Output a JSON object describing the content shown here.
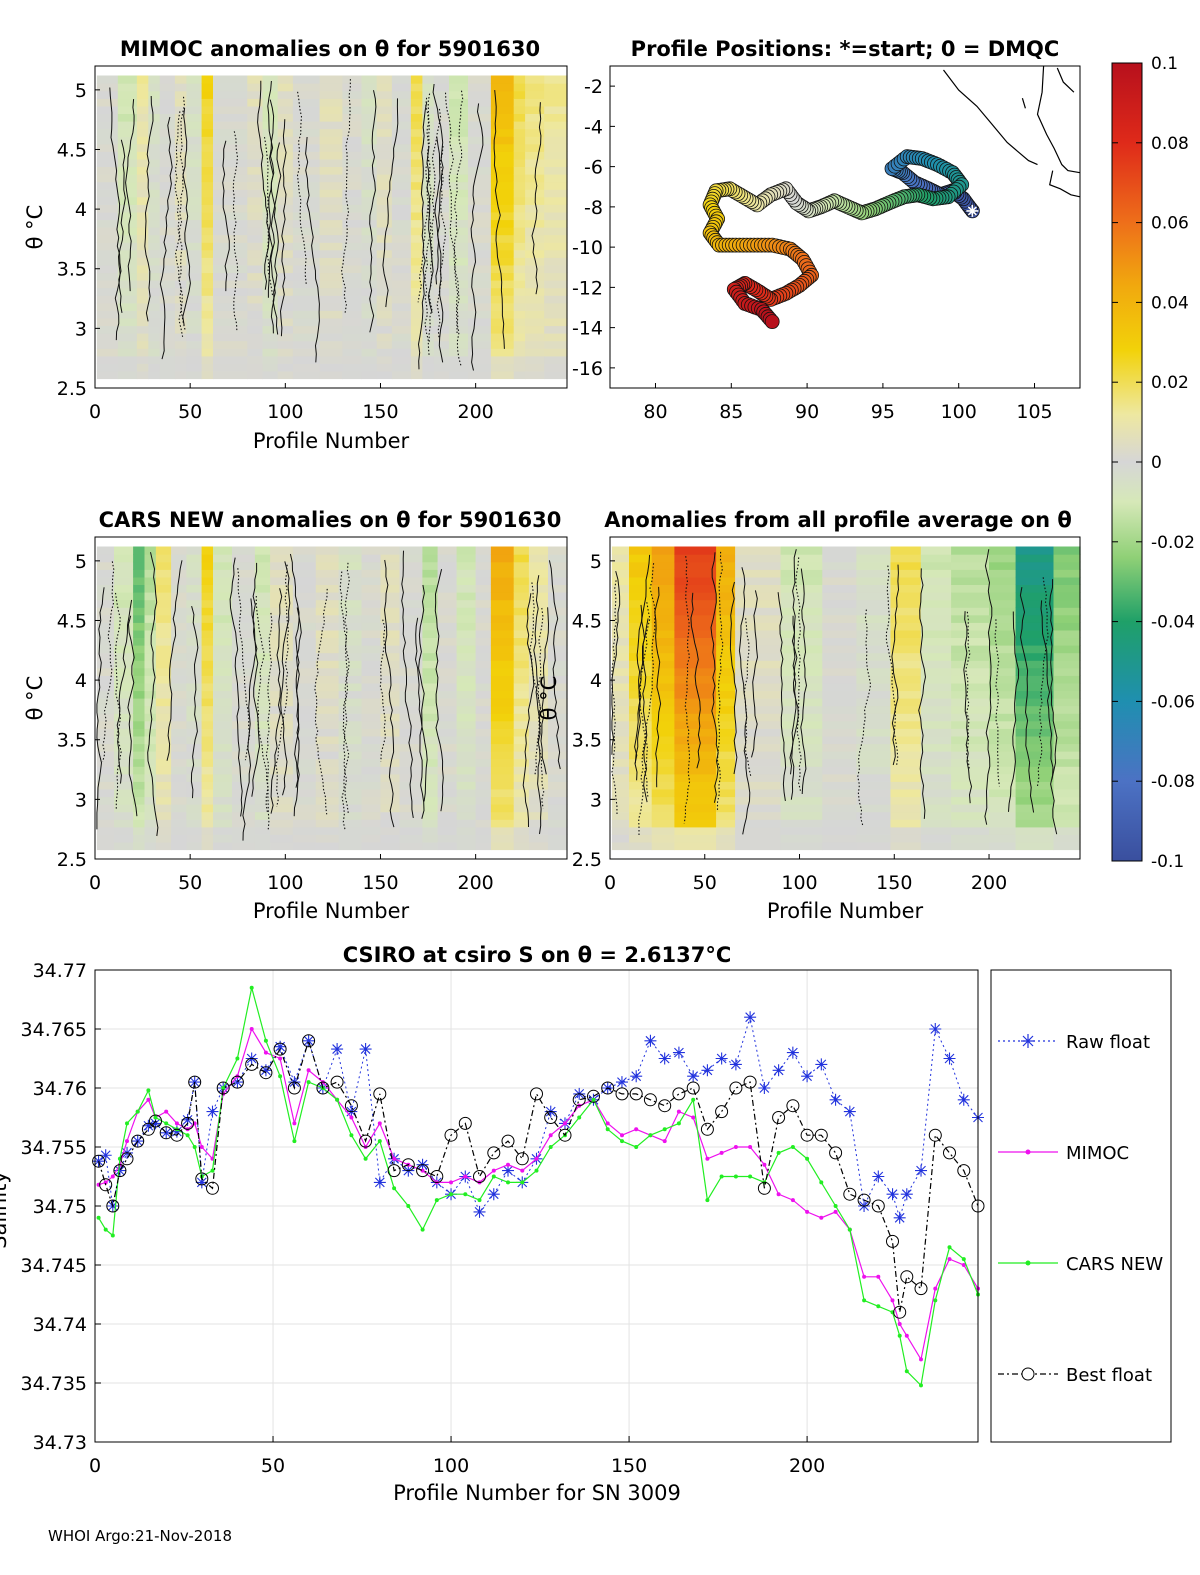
{
  "footer": "WHOI Argo:21-Nov-2018",
  "chart_data": [
    {
      "id": "mimoc",
      "type": "heatmap",
      "title": "MIMOC anomalies on θ  for 5901630",
      "xlabel": "Profile Number",
      "ylabel": "θ °C",
      "xlim": [
        0,
        248
      ],
      "ylim": [
        2.5,
        5.2
      ],
      "xticks": [
        "0",
        "50",
        "100",
        "150",
        "200"
      ],
      "yticks": [
        "2.5",
        "3",
        "3.5",
        "4",
        "4.5",
        "5"
      ],
      "bands": [
        [
          0,
          12,
          0.0
        ],
        [
          12,
          22,
          -0.01
        ],
        [
          22,
          28,
          0.01
        ],
        [
          28,
          34,
          -0.005
        ],
        [
          34,
          42,
          0.0
        ],
        [
          42,
          48,
          0.005
        ],
        [
          48,
          56,
          -0.005
        ],
        [
          56,
          62,
          0.025
        ],
        [
          62,
          80,
          0.0
        ],
        [
          80,
          88,
          0.005
        ],
        [
          88,
          96,
          -0.01
        ],
        [
          96,
          104,
          0.005
        ],
        [
          104,
          118,
          0.0
        ],
        [
          118,
          130,
          0.005
        ],
        [
          130,
          140,
          0.0
        ],
        [
          140,
          148,
          -0.005
        ],
        [
          148,
          156,
          0.005
        ],
        [
          156,
          166,
          0.0
        ],
        [
          166,
          172,
          0.02
        ],
        [
          172,
          178,
          -0.005
        ],
        [
          178,
          186,
          0.0
        ],
        [
          186,
          196,
          -0.01
        ],
        [
          196,
          208,
          0.0
        ],
        [
          208,
          220,
          0.035
        ],
        [
          220,
          226,
          0.02
        ],
        [
          226,
          236,
          0.015
        ],
        [
          236,
          248,
          0.012
        ]
      ]
    },
    {
      "id": "positions",
      "type": "scatter",
      "title": "Profile Positions: *=start; 0 = DMQC",
      "xlim": [
        77,
        108
      ],
      "ylim": [
        -17,
        -1
      ],
      "xticks": [
        "80",
        "85",
        "90",
        "95",
        "100",
        "105"
      ],
      "yticks": [
        "-2",
        "-4",
        "-6",
        "-8",
        "-10",
        "-12",
        "-14",
        "-16"
      ],
      "track": [
        [
          100.9,
          -8.2
        ],
        [
          100.3,
          -7.6
        ],
        [
          99.6,
          -7.2
        ],
        [
          98.8,
          -7.4
        ],
        [
          98.0,
          -7.1
        ],
        [
          97.1,
          -6.8
        ],
        [
          96.3,
          -6.3
        ],
        [
          95.6,
          -6.1
        ],
        [
          96.6,
          -5.5
        ],
        [
          97.6,
          -5.6
        ],
        [
          98.6,
          -5.9
        ],
        [
          99.6,
          -6.3
        ],
        [
          100.2,
          -6.9
        ],
        [
          99.3,
          -7.5
        ],
        [
          98.3,
          -7.6
        ],
        [
          97.3,
          -7.4
        ],
        [
          96.4,
          -7.5
        ],
        [
          95.4,
          -7.8
        ],
        [
          94.5,
          -8.1
        ],
        [
          93.6,
          -8.3
        ],
        [
          92.7,
          -8.0
        ],
        [
          91.8,
          -7.7
        ],
        [
          90.9,
          -8.0
        ],
        [
          90.1,
          -8.2
        ],
        [
          89.3,
          -7.8
        ],
        [
          88.6,
          -7.1
        ],
        [
          87.6,
          -7.4
        ],
        [
          86.7,
          -7.9
        ],
        [
          85.8,
          -7.5
        ],
        [
          84.9,
          -7.1
        ],
        [
          84.0,
          -7.2
        ],
        [
          83.6,
          -7.9
        ],
        [
          84.1,
          -8.6
        ],
        [
          83.6,
          -9.3
        ],
        [
          84.2,
          -9.9
        ],
        [
          85.3,
          -9.9
        ],
        [
          86.5,
          -9.9
        ],
        [
          87.7,
          -9.9
        ],
        [
          88.9,
          -10.1
        ],
        [
          89.7,
          -10.6
        ],
        [
          90.3,
          -11.4
        ],
        [
          89.5,
          -11.9
        ],
        [
          88.6,
          -12.3
        ],
        [
          87.6,
          -12.6
        ],
        [
          86.8,
          -12.2
        ],
        [
          85.9,
          -11.8
        ],
        [
          85.2,
          -12.1
        ],
        [
          85.9,
          -12.8
        ],
        [
          87.0,
          -13.1
        ],
        [
          87.7,
          -13.7
        ]
      ],
      "coast": [
        [
          [
            99.0,
            -1.2
          ],
          [
            100.0,
            -2.2
          ],
          [
            101.2,
            -3.0
          ],
          [
            102.2,
            -3.9
          ],
          [
            103.2,
            -4.8
          ],
          [
            104.6,
            -5.7
          ],
          [
            105.2,
            -5.9
          ]
        ],
        [
          [
            105.6,
            -1.0
          ],
          [
            105.5,
            -2.3
          ],
          [
            105.2,
            -3.4
          ],
          [
            105.8,
            -4.4
          ],
          [
            106.3,
            -5.1
          ],
          [
            106.8,
            -5.9
          ],
          [
            107.2,
            -6.2
          ],
          [
            108.0,
            -6.3
          ]
        ],
        [
          [
            106.5,
            -1.1
          ],
          [
            106.9,
            -1.8
          ],
          [
            107.6,
            -2.3
          ]
        ],
        [
          [
            106.2,
            -6.2
          ],
          [
            106.0,
            -6.9
          ],
          [
            106.7,
            -7.1
          ],
          [
            107.4,
            -7.4
          ],
          [
            108.0,
            -7.5
          ]
        ],
        [
          [
            104.2,
            -2.6
          ],
          [
            104.4,
            -3.1
          ]
        ]
      ]
    },
    {
      "id": "colorbar",
      "type": "heatmap",
      "title": "",
      "range": [
        -0.1,
        0.1
      ],
      "ticks": [
        "0.1",
        "0.08",
        "0.06",
        "0.04",
        "0.02",
        "0",
        "-0.02",
        "-0.04",
        "-0.06",
        "-0.08",
        "-0.1"
      ]
    },
    {
      "id": "cars",
      "type": "heatmap",
      "title": "CARS NEW anomalies on θ for 5901630",
      "xlabel": "Profile Number",
      "ylabel": "θ °C",
      "xlim": [
        0,
        248
      ],
      "ylim": [
        2.5,
        5.2
      ],
      "xticks": [
        "0",
        "50",
        "100",
        "150",
        "200"
      ],
      "yticks": [
        "2.5",
        "3",
        "3.5",
        "4",
        "4.5",
        "5"
      ],
      "bands": [
        [
          0,
          10,
          0.0
        ],
        [
          10,
          20,
          -0.01
        ],
        [
          20,
          26,
          -0.03
        ],
        [
          26,
          32,
          -0.015
        ],
        [
          32,
          40,
          0.015
        ],
        [
          40,
          48,
          0.0
        ],
        [
          48,
          56,
          -0.005
        ],
        [
          56,
          62,
          0.025
        ],
        [
          62,
          72,
          -0.01
        ],
        [
          72,
          84,
          0.0
        ],
        [
          84,
          92,
          -0.01
        ],
        [
          92,
          104,
          0.005
        ],
        [
          104,
          116,
          0.0
        ],
        [
          116,
          128,
          0.005
        ],
        [
          128,
          140,
          -0.005
        ],
        [
          140,
          150,
          0.0
        ],
        [
          150,
          160,
          0.005
        ],
        [
          160,
          172,
          0.0
        ],
        [
          172,
          180,
          -0.015
        ],
        [
          180,
          190,
          0.0
        ],
        [
          190,
          200,
          -0.01
        ],
        [
          200,
          208,
          0.0
        ],
        [
          208,
          220,
          0.04
        ],
        [
          220,
          228,
          0.02
        ],
        [
          228,
          238,
          0.01
        ],
        [
          238,
          248,
          0.0
        ]
      ]
    },
    {
      "id": "avg",
      "type": "heatmap",
      "title": "Anomalies from all profile average on θ",
      "xlabel": "Profile Number",
      "ylabel": "θ °C",
      "xlim": [
        0,
        248
      ],
      "ylim": [
        2.5,
        5.2
      ],
      "xticks": [
        "0",
        "50",
        "100",
        "150",
        "200"
      ],
      "yticks": [
        "2.5",
        "3",
        "3.5",
        "4",
        "4.5",
        "5"
      ],
      "bands": [
        [
          0,
          10,
          0.01
        ],
        [
          10,
          22,
          0.03
        ],
        [
          22,
          34,
          0.045
        ],
        [
          34,
          56,
          0.07
        ],
        [
          56,
          66,
          0.04
        ],
        [
          66,
          90,
          0.005
        ],
        [
          90,
          112,
          -0.01
        ],
        [
          112,
          130,
          0.0
        ],
        [
          130,
          148,
          -0.005
        ],
        [
          148,
          164,
          0.02
        ],
        [
          164,
          180,
          -0.01
        ],
        [
          180,
          200,
          -0.015
        ],
        [
          200,
          214,
          -0.02
        ],
        [
          214,
          234,
          -0.045
        ],
        [
          234,
          248,
          -0.025
        ]
      ]
    },
    {
      "id": "salinity",
      "type": "line",
      "title": "CSIRO at csiro S on θ = 2.6137°C",
      "xlabel": "Profile Number for SN 3009",
      "ylabel": "Salinity",
      "xlim": [
        0,
        248
      ],
      "ylim": [
        34.73,
        34.77
      ],
      "xticks": [
        "0",
        "50",
        "100",
        "150",
        "200"
      ],
      "yticks": [
        "34.73",
        "34.735",
        "34.74",
        "34.745",
        "34.75",
        "34.755",
        "34.76",
        "34.765",
        "34.77"
      ],
      "x": [
        1,
        3,
        5,
        7,
        9,
        12,
        15,
        17,
        20,
        23,
        26,
        28,
        30,
        33,
        36,
        40,
        44,
        48,
        52,
        56,
        60,
        64,
        68,
        72,
        76,
        80,
        84,
        88,
        92,
        96,
        100,
        104,
        108,
        112,
        116,
        120,
        124,
        128,
        132,
        136,
        140,
        144,
        148,
        152,
        156,
        160,
        164,
        168,
        172,
        176,
        180,
        184,
        188,
        192,
        196,
        200,
        204,
        208,
        212,
        216,
        220,
        224,
        226,
        228,
        232,
        236,
        240,
        244,
        248
      ],
      "series": [
        {
          "name": "Raw float",
          "color": "#2233dd",
          "values": [
            34.7538,
            34.7543,
            34.75,
            34.753,
            34.7545,
            34.7555,
            34.7568,
            34.757,
            34.7562,
            34.7563,
            34.7573,
            34.7605,
            34.752,
            34.758,
            34.76,
            34.7605,
            34.7625,
            34.7615,
            34.7635,
            34.7605,
            34.764,
            34.76,
            34.7633,
            34.758,
            34.7633,
            34.752,
            34.754,
            34.753,
            34.7535,
            34.752,
            34.751,
            34.7525,
            34.7495,
            34.751,
            34.753,
            34.752,
            34.754,
            34.758,
            34.757,
            34.7595,
            34.759,
            34.76,
            34.7605,
            34.761,
            34.764,
            34.7625,
            34.763,
            34.761,
            34.7615,
            34.7625,
            34.762,
            34.766,
            34.76,
            34.7615,
            34.763,
            34.761,
            34.762,
            34.759,
            34.758,
            34.75,
            34.7525,
            34.751,
            34.749,
            34.751,
            34.753,
            34.765,
            34.7625,
            34.759,
            34.7575
          ]
        },
        {
          "name": "MIMOC",
          "color": "#ee11ee",
          "values": [
            34.7518,
            34.752,
            34.7525,
            34.7535,
            34.7555,
            34.758,
            34.759,
            34.7575,
            34.758,
            34.757,
            34.7565,
            34.757,
            34.755,
            34.754,
            34.7595,
            34.761,
            34.765,
            34.763,
            34.7625,
            34.757,
            34.7615,
            34.7605,
            34.759,
            34.7575,
            34.755,
            34.757,
            34.754,
            34.7535,
            34.753,
            34.752,
            34.752,
            34.7525,
            34.752,
            34.753,
            34.7535,
            34.753,
            34.754,
            34.756,
            34.757,
            34.7585,
            34.759,
            34.757,
            34.756,
            34.7565,
            34.756,
            34.7555,
            34.758,
            34.7575,
            34.754,
            34.7545,
            34.755,
            34.755,
            34.7535,
            34.751,
            34.7505,
            34.7495,
            34.749,
            34.7495,
            34.748,
            34.744,
            34.744,
            34.742,
            34.74,
            34.739,
            34.737,
            34.743,
            34.7455,
            34.745,
            34.743
          ]
        },
        {
          "name": "CARS NEW",
          "color": "#22ee22",
          "values": [
            34.749,
            34.748,
            34.7475,
            34.754,
            34.757,
            34.758,
            34.7598,
            34.7575,
            34.757,
            34.7565,
            34.756,
            34.755,
            34.7525,
            34.753,
            34.76,
            34.7625,
            34.7685,
            34.764,
            34.761,
            34.7555,
            34.7605,
            34.76,
            34.759,
            34.756,
            34.754,
            34.7555,
            34.7515,
            34.75,
            34.748,
            34.7505,
            34.751,
            34.751,
            34.7505,
            34.7525,
            34.752,
            34.752,
            34.753,
            34.755,
            34.756,
            34.7575,
            34.759,
            34.7565,
            34.7555,
            34.755,
            34.756,
            34.7565,
            34.757,
            34.759,
            34.7505,
            34.7525,
            34.7525,
            34.7525,
            34.752,
            34.7545,
            34.755,
            34.754,
            34.752,
            34.75,
            34.748,
            34.742,
            34.7415,
            34.741,
            34.739,
            34.736,
            34.7348,
            34.742,
            34.7465,
            34.7455,
            34.7425
          ]
        },
        {
          "name": "Best float",
          "color": "#000000",
          "values": [
            34.7538,
            34.7518,
            34.75,
            34.753,
            34.754,
            34.7555,
            34.7565,
            34.7572,
            34.7562,
            34.756,
            34.757,
            34.7605,
            34.7523,
            34.7515,
            34.76,
            34.7605,
            34.762,
            34.7613,
            34.7633,
            34.76,
            34.764,
            34.76,
            34.7605,
            34.7585,
            34.7555,
            34.7595,
            34.753,
            34.7535,
            34.753,
            34.7525,
            34.756,
            34.757,
            34.7525,
            34.7545,
            34.7555,
            34.754,
            34.7595,
            34.7575,
            34.756,
            34.759,
            34.7593,
            34.76,
            34.7595,
            34.7595,
            34.759,
            34.7585,
            34.7595,
            34.76,
            34.7565,
            34.758,
            34.76,
            34.7605,
            34.7515,
            34.7575,
            34.7585,
            34.756,
            34.756,
            34.7545,
            34.751,
            34.7505,
            34.75,
            34.747,
            34.741,
            34.744,
            34.743,
            34.756,
            34.7545,
            34.753,
            34.75
          ]
        }
      ]
    }
  ]
}
